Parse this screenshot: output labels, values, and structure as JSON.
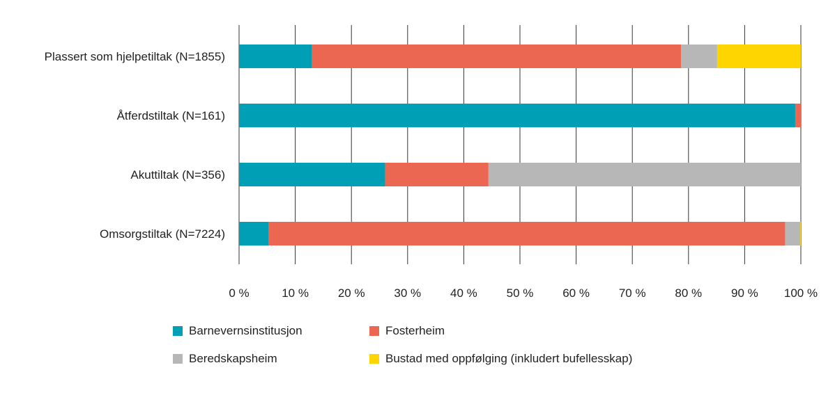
{
  "chart_data": {
    "type": "bar",
    "orientation": "horizontal",
    "stacked": true,
    "categories": [
      "Plassert som hjelpetiltak (N=1855)",
      "Åtferdstiltak (N=161)",
      "Akuttiltak (N=356)",
      "Omsorgstiltak (N=7224)"
    ],
    "series": [
      {
        "name": "Barnevernsinstitusjon",
        "color": "#009fb5",
        "values": [
          13,
          99,
          26,
          5.3
        ]
      },
      {
        "name": "Fosterheim",
        "color": "#ec6751",
        "values": [
          65.7,
          1,
          18.4,
          91.9
        ]
      },
      {
        "name": "Beredskapsheim",
        "color": "#b7b7b7",
        "values": [
          6.4,
          0,
          55.6,
          2.7
        ]
      },
      {
        "name": "Bustad med oppfølging (inkludert bufellesskap)",
        "color": "#ffd500",
        "values": [
          14.9,
          0,
          0,
          0.1
        ]
      }
    ],
    "xlim": [
      0,
      100
    ],
    "x_ticks": [
      0,
      10,
      20,
      30,
      40,
      50,
      60,
      70,
      80,
      90,
      100
    ],
    "tick_labels": [
      "0 %",
      "10 %",
      "20 %",
      "30 %",
      "40 %",
      "50 %",
      "60 %",
      "70 %",
      "80 %",
      "90 %",
      "100 %"
    ],
    "grid": true,
    "legend_position": "bottom",
    "title": "",
    "xlabel": "",
    "ylabel": ""
  }
}
